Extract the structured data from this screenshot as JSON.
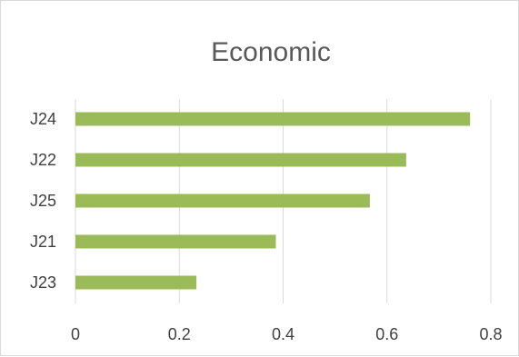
{
  "chart_data": {
    "type": "bar",
    "orientation": "horizontal",
    "title": "Economic",
    "categories": [
      "J24",
      "J22",
      "J25",
      "J21",
      "J23"
    ],
    "values": [
      0.76,
      0.637,
      0.567,
      0.386,
      0.233
    ],
    "xlim": [
      0,
      0.8
    ],
    "xticks": [
      "0",
      "0.2",
      "0.4",
      "0.6",
      "0.8"
    ],
    "grid": "vertical",
    "legend": "none",
    "bar_color": "#9bbb59"
  }
}
